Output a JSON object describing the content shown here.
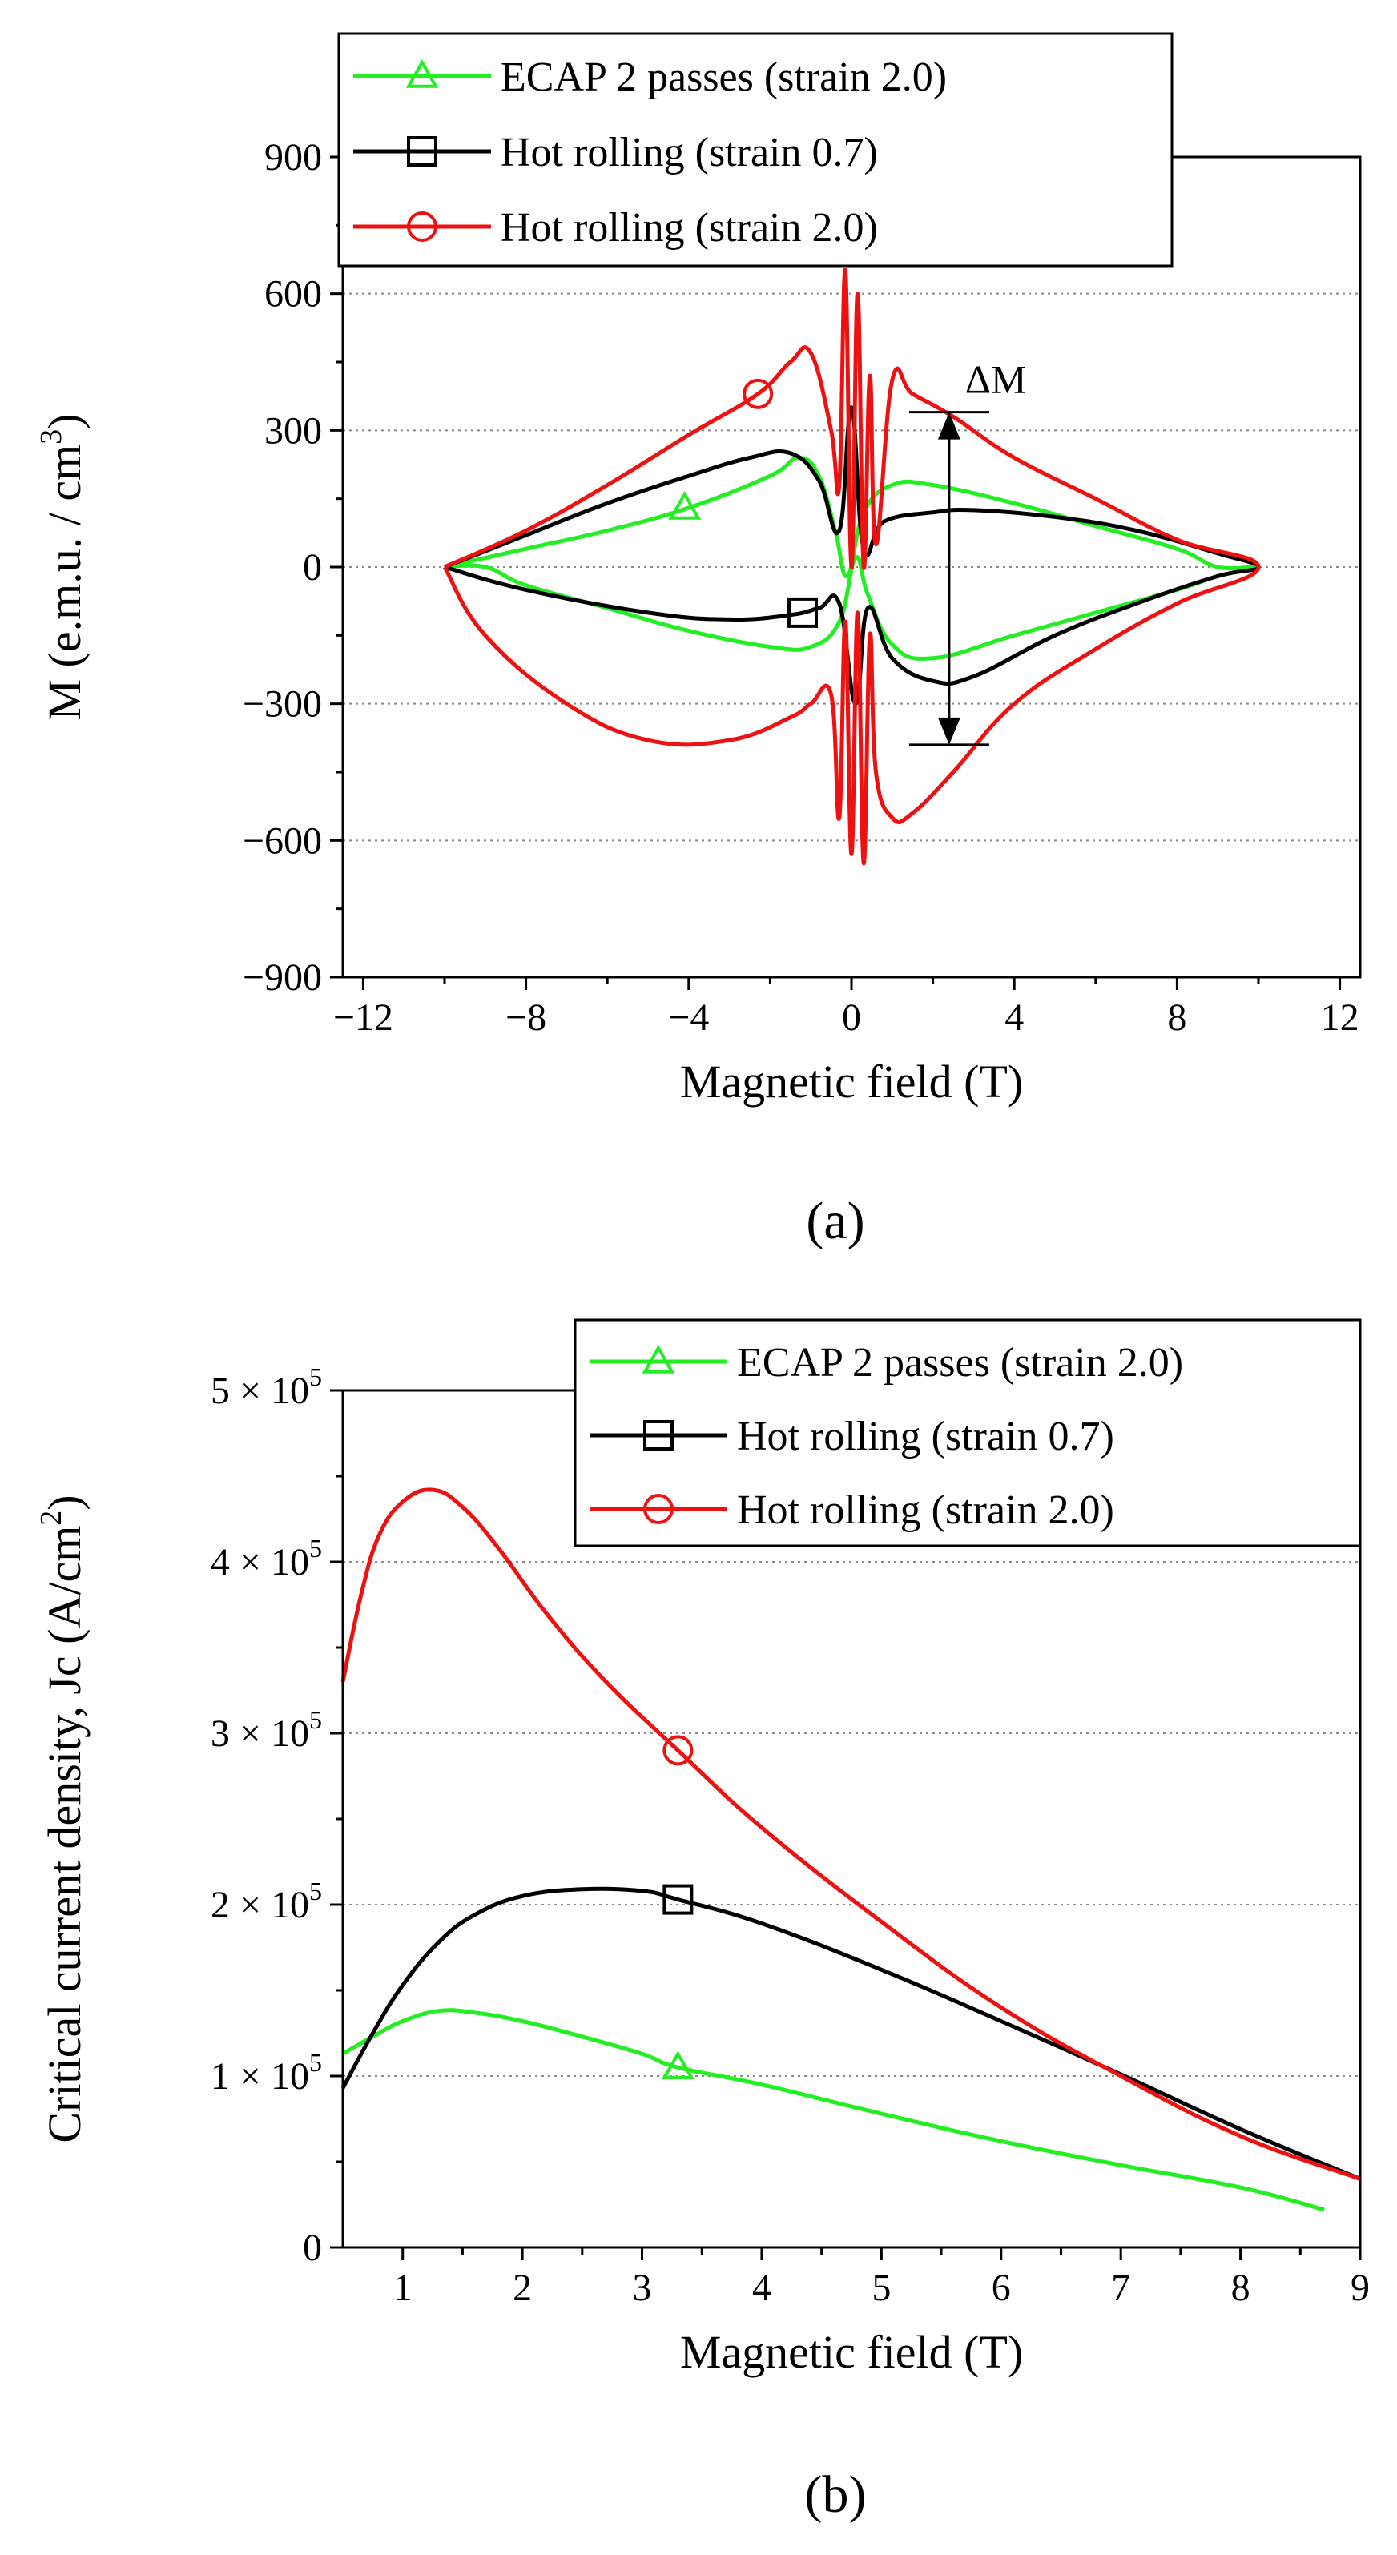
{
  "chart_data": [
    {
      "type": "line",
      "panel_label": "(a)",
      "xlabel": "Magnetic field (T)",
      "ylabel": "M (e.m.u. / cm³)",
      "ylabel_parts": [
        "M (e.m.u. / cm",
        "3",
        ")"
      ],
      "xlim": [
        -12.5,
        12.5
      ],
      "ylim": [
        -900,
        900
      ],
      "xticks": [
        -12,
        -8,
        -4,
        0,
        4,
        8,
        12
      ],
      "xtick_labels": [
        "−12",
        "−8",
        "−4",
        "0",
        "4",
        "8",
        "12"
      ],
      "yticks": [
        -900,
        -600,
        -300,
        0,
        300,
        600,
        900
      ],
      "ytick_labels": [
        "−900",
        "−600",
        "−300",
        "0",
        "300",
        "600",
        "900"
      ],
      "grid": "horizontal dotted",
      "legend_position": "top-left",
      "annotation": {
        "text": "ΔM",
        "x": 2.4,
        "y_top": 340,
        "y_bottom": -390
      },
      "series": [
        {
          "name": "ECAP 2 passes (strain 2.0)",
          "color": "#22ee22",
          "marker": "triangle",
          "marker_at": [
            -4.1,
            130
          ],
          "x": [
            -10,
            -8,
            -6,
            -4,
            -2,
            -1.3,
            -0.8,
            -0.4,
            -0.1,
            0.3,
            1,
            2,
            4,
            6,
            8,
            9,
            10,
            9,
            8,
            6,
            4,
            2,
            1,
            0.4,
            0.1,
            -0.3,
            -1,
            -2,
            -4,
            -6,
            -8,
            -9,
            -10
          ],
          "y": [
            0,
            40,
            80,
            130,
            200,
            240,
            200,
            80,
            -20,
            120,
            180,
            180,
            140,
            90,
            40,
            0,
            0,
            -20,
            -50,
            -100,
            -150,
            -200,
            -170,
            -60,
            20,
            -120,
            -175,
            -175,
            -140,
            -90,
            -40,
            0,
            0
          ]
        },
        {
          "name": "Hot rolling (strain 0.7)",
          "color": "#000000",
          "marker": "square",
          "marker_at": [
            -1.2,
            -100
          ],
          "x": [
            -10,
            -8,
            -6,
            -4,
            -2.5,
            -1.5,
            -0.8,
            -0.3,
            0,
            0.3,
            0.8,
            2,
            3,
            5,
            7,
            9,
            10,
            9,
            7,
            5,
            3,
            2,
            1,
            0.4,
            0.1,
            -0.3,
            -0.8,
            -1.5,
            -3,
            -5,
            -8,
            -10
          ],
          "y": [
            0,
            70,
            140,
            200,
            240,
            250,
            190,
            80,
            350,
            40,
            100,
            120,
            125,
            110,
            80,
            30,
            0,
            -20,
            -80,
            -150,
            -240,
            -250,
            -200,
            -90,
            -300,
            -80,
            -90,
            -105,
            -115,
            -100,
            -50,
            0
          ]
        },
        {
          "name": "Hot rolling (strain 2.0)",
          "color": "#ee1111",
          "marker": "circle",
          "marker_at": [
            -2.3,
            380
          ],
          "x": [
            -10,
            -8,
            -6,
            -4,
            -2.3,
            -1.5,
            -1,
            -0.5,
            -0.3,
            -0.15,
            0,
            0.15,
            0.3,
            0.45,
            0.6,
            1,
            1.5,
            2.5,
            4,
            6,
            8,
            10,
            8,
            6,
            4,
            2.5,
            1.5,
            1,
            0.6,
            0.45,
            0.3,
            0.15,
            0,
            -0.15,
            -0.3,
            -0.5,
            -1,
            -1.5,
            -3,
            -5,
            -7,
            -9,
            -10
          ],
          "y": [
            0,
            80,
            180,
            290,
            380,
            450,
            470,
            300,
            180,
            650,
            0,
            600,
            0,
            420,
            50,
            410,
            380,
            330,
            240,
            150,
            60,
            0,
            -80,
            -180,
            -300,
            -450,
            -540,
            -550,
            -450,
            -150,
            -650,
            -100,
            -630,
            -120,
            -550,
            -280,
            -300,
            -330,
            -380,
            -380,
            -300,
            -150,
            0
          ]
        }
      ]
    },
    {
      "type": "line",
      "panel_label": "(b)",
      "xlabel": "Magnetic field (T)",
      "ylabel": "Critical current density, Jc (A/cm²)",
      "ylabel_parts": [
        "Critical current density, Jc (A/cm",
        "2",
        ")"
      ],
      "xlim": [
        0.5,
        9
      ],
      "ylim": [
        0,
        500000
      ],
      "xticks": [
        1,
        2,
        3,
        4,
        5,
        6,
        7,
        8,
        9
      ],
      "xtick_labels": [
        "1",
        "2",
        "3",
        "4",
        "5",
        "6",
        "7",
        "8",
        "9"
      ],
      "yticks": [
        0,
        100000,
        200000,
        300000,
        400000,
        500000
      ],
      "ytick_labels": [
        {
          "m": "0",
          "e": ""
        },
        {
          "m": "1 × 10",
          "e": "5"
        },
        {
          "m": "2 × 10",
          "e": "5"
        },
        {
          "m": "3 × 10",
          "e": "5"
        },
        {
          "m": "4 × 10",
          "e": "5"
        },
        {
          "m": "5 × 10",
          "e": "5"
        }
      ],
      "grid": "horizontal dotted",
      "legend_position": "top-right",
      "series": [
        {
          "name": "ECAP 2 passes (strain 2.0)",
          "color": "#22ee22",
          "marker": "triangle",
          "marker_at": [
            3.3,
            105000
          ],
          "x": [
            0.5,
            0.75,
            1,
            1.3,
            1.6,
            2,
            2.5,
            3,
            3.3,
            4,
            5,
            6,
            7,
            8,
            8.7
          ],
          "y": [
            113000,
            123000,
            132000,
            138000,
            137000,
            132000,
            123000,
            113000,
            105000,
            95000,
            78000,
            62000,
            48000,
            35000,
            22000
          ]
        },
        {
          "name": "Hot rolling (strain 0.7)",
          "color": "#000000",
          "marker": "square",
          "marker_at": [
            3.3,
            203000
          ],
          "x": [
            0.5,
            0.75,
            1,
            1.3,
            1.6,
            2,
            2.5,
            3,
            3.3,
            4,
            5,
            6,
            7,
            8,
            9
          ],
          "y": [
            93000,
            125000,
            153000,
            178000,
            194000,
            205000,
            209000,
            208000,
            203000,
            189000,
            162000,
            132000,
            101000,
            69000,
            40000
          ]
        },
        {
          "name": "Hot rolling (strain 2.0)",
          "color": "#ee1111",
          "marker": "circle",
          "marker_at": [
            3.3,
            290000
          ],
          "x": [
            0.5,
            0.65,
            0.8,
            1,
            1.25,
            1.5,
            1.8,
            2.2,
            2.7,
            3.3,
            4,
            5,
            6,
            7,
            8,
            9
          ],
          "y": [
            330000,
            380000,
            415000,
            435000,
            442000,
            432000,
            408000,
            370000,
            330000,
            290000,
            245000,
            190000,
            140000,
            100000,
            65000,
            40000
          ]
        }
      ]
    }
  ]
}
